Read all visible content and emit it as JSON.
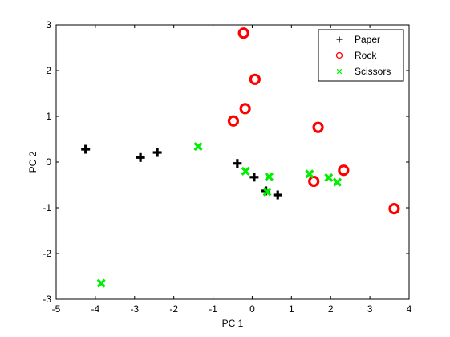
{
  "chart_data": {
    "type": "scatter",
    "xlabel": "PC 1",
    "ylabel": "PC 2",
    "xlim": [
      -5,
      4
    ],
    "ylim": [
      -3,
      3
    ],
    "xticks": [
      -5,
      -4,
      -3,
      -2,
      -1,
      0,
      1,
      2,
      3,
      4
    ],
    "yticks": [
      -3,
      -2,
      -1,
      0,
      1,
      2,
      3
    ],
    "grid": false,
    "legend_position": "top-right",
    "series": [
      {
        "name": "Paper",
        "marker": "plus",
        "color": "#000000",
        "points": [
          [
            -4.25,
            0.28
          ],
          [
            -2.85,
            0.1
          ],
          [
            -2.42,
            0.21
          ],
          [
            -0.38,
            -0.03
          ],
          [
            0.05,
            -0.33
          ],
          [
            0.35,
            -0.63
          ],
          [
            0.65,
            -0.72
          ]
        ]
      },
      {
        "name": "Rock",
        "marker": "circle",
        "color": "#ff0000",
        "points": [
          [
            -0.22,
            2.82
          ],
          [
            0.07,
            1.81
          ],
          [
            -0.18,
            1.17
          ],
          [
            -0.48,
            0.9
          ],
          [
            1.68,
            0.76
          ],
          [
            2.33,
            -0.18
          ],
          [
            1.57,
            -0.42
          ],
          [
            3.62,
            -1.02
          ]
        ]
      },
      {
        "name": "Scissors",
        "marker": "x",
        "color": "#00ee00",
        "points": [
          [
            -1.38,
            0.34
          ],
          [
            -0.17,
            -0.2
          ],
          [
            0.43,
            -0.32
          ],
          [
            0.38,
            -0.65
          ],
          [
            1.46,
            -0.26
          ],
          [
            1.95,
            -0.34
          ],
          [
            2.17,
            -0.44
          ],
          [
            -3.85,
            -2.65
          ]
        ]
      }
    ]
  }
}
